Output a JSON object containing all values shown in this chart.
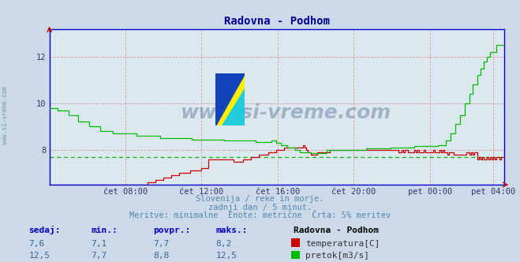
{
  "title": "Radovna - Podhom",
  "bg_color": "#ccd9e8",
  "plot_bg_color": "#dce8f0",
  "x_min": 0,
  "x_max": 287,
  "y_min": 6.5,
  "y_max": 13.2,
  "yticks": [
    8,
    10,
    12
  ],
  "xtick_labels": [
    "čet 08:00",
    "čet 12:00",
    "čet 16:00",
    "čet 20:00",
    "pet 00:00",
    "pet 04:00"
  ],
  "xtick_positions": [
    48,
    96,
    144,
    192,
    240,
    280
  ],
  "temp_color": "#cc0000",
  "flow_color": "#00bb00",
  "hline_color": "#00bb00",
  "hline_y": 7.7,
  "axis_color": "#0000cc",
  "grid_color": "#dd9999",
  "subtitle1": "Slovenija / reke in morje.",
  "subtitle2": "zadnji dan / 5 minut.",
  "subtitle3": "Meritve: minimalne  Enote: metrične  Črta: 5% meritev",
  "footer_col1_label": "sedaj:",
  "footer_col2_label": "min.:",
  "footer_col3_label": "povpr.:",
  "footer_col4_label": "maks.:",
  "footer_col5_label": "Radovna - Podhom",
  "footer_temp_sedaj": "7,6",
  "footer_temp_min": "7,1",
  "footer_temp_povpr": "7,7",
  "footer_temp_maks": "8,2",
  "footer_flow_sedaj": "12,5",
  "footer_flow_min": "7,7",
  "footer_flow_povpr": "8,8",
  "footer_flow_maks": "12,5",
  "watermark_text": "www.si-vreme.com",
  "side_label": "www.si-vreme.com",
  "title_color": "#000099",
  "subtitle_color": "#5588aa",
  "footer_label_color": "#0000cc",
  "footer_value_color": "#336699"
}
